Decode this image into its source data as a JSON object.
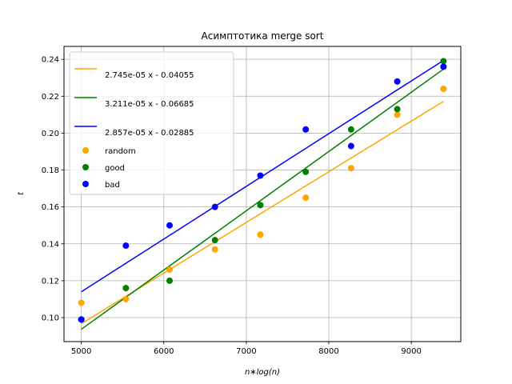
{
  "chart_data": {
    "type": "scatter",
    "title": "Асимптотика merge sort",
    "xlabel": "n∗log(n)",
    "ylabel": "t",
    "xlim": [
      4790,
      9600
    ],
    "ylim": [
      0.087,
      0.247
    ],
    "xticks": [
      5000,
      6000,
      7000,
      8000,
      9000
    ],
    "xtick_labels": [
      "5000",
      "6000",
      "7000",
      "8000",
      "9000"
    ],
    "yticks": [
      0.1,
      0.12,
      0.14,
      0.16,
      0.18,
      0.2,
      0.22,
      0.24
    ],
    "ytick_labels": [
      "0.10",
      "0.12",
      "0.14",
      "0.16",
      "0.18",
      "0.20",
      "0.22",
      "0.24"
    ],
    "grid": true,
    "legend_position": "top-left",
    "x": [
      5000,
      5540,
      6070,
      6620,
      7170,
      7720,
      8270,
      8830,
      9390
    ],
    "fits": [
      {
        "label": "2.745e-05 x - 0.04055",
        "color": "#ffa500",
        "slope": 2.745e-05,
        "intercept": -0.04055
      },
      {
        "label": "3.211e-05 x - 0.06685",
        "color": "#008000",
        "slope": 3.211e-05,
        "intercept": -0.06685
      },
      {
        "label": "2.857e-05 x - 0.02885",
        "color": "#0000ff",
        "slope": 2.857e-05,
        "intercept": -0.02885
      }
    ],
    "series": [
      {
        "name": "random",
        "color": "#ffa500",
        "values": [
          0.108,
          0.11,
          0.126,
          0.137,
          0.145,
          0.165,
          0.181,
          0.21,
          0.224
        ]
      },
      {
        "name": "good",
        "color": "#008000",
        "values": [
          0.099,
          0.116,
          0.12,
          0.142,
          0.161,
          0.179,
          0.202,
          0.213,
          0.239
        ]
      },
      {
        "name": "bad",
        "color": "#0000ff",
        "values": [
          0.099,
          0.139,
          0.15,
          0.16,
          0.177,
          0.202,
          0.193,
          0.228,
          0.236
        ]
      }
    ]
  }
}
